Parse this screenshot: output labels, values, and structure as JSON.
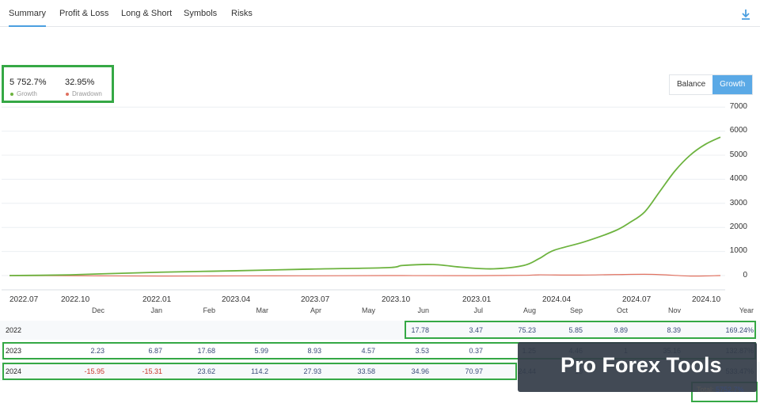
{
  "tabs": [
    {
      "label": "Summary",
      "active": true
    },
    {
      "label": "Profit & Loss"
    },
    {
      "label": "Long & Short"
    },
    {
      "label": "Symbols"
    },
    {
      "label": "Risks"
    }
  ],
  "download_icon": "download-icon",
  "stats": {
    "growth_value": "5 752.7%",
    "growth_label": "Growth",
    "drawdown_value": "32.95%",
    "drawdown_label": "Drawdown",
    "growth_color": "#6db33f",
    "drawdown_color": "#e0705f"
  },
  "toggle": {
    "balance_label": "Balance",
    "growth_label": "Growth",
    "active": "Growth"
  },
  "chart_data": {
    "type": "line",
    "x_tick_labels": [
      "2022.07",
      "2022.10",
      "2022.01",
      "2023.04",
      "2023.07",
      "2023.10",
      "2023.01",
      "2024.04",
      "2024.07",
      "2024.10"
    ],
    "y_tick_labels": [
      "7000",
      "6000",
      "5000",
      "4000",
      "3000",
      "2000",
      "1000",
      "0"
    ],
    "ylim": [
      -100,
      7000
    ],
    "y_axis_position": "right",
    "grid": true,
    "series": [
      {
        "color": "#6db33f",
        "x": [
          0,
          0.4,
          0.8,
          1.2,
          2,
          3,
          4,
          5,
          5.2,
          5.6,
          6,
          6.4,
          6.8,
          7,
          7.2,
          7.6,
          8,
          8.2,
          8.4,
          8.6,
          8.8,
          9,
          9.2,
          9.4
        ],
        "values": [
          0,
          10,
          30,
          70,
          140,
          200,
          270,
          330,
          420,
          460,
          340,
          280,
          420,
          700,
          1050,
          1400,
          1850,
          2200,
          2650,
          3500,
          4350,
          5000,
          5450,
          5750
        ]
      },
      {
        "color": "#e0705f",
        "x": [
          0,
          1,
          2,
          3,
          4,
          5,
          6,
          6.8,
          7,
          7.5,
          8,
          8.5,
          9,
          9.4
        ],
        "values": [
          0,
          -10,
          -20,
          -15,
          -10,
          0,
          -5,
          10,
          30,
          20,
          40,
          50,
          -20,
          0
        ]
      }
    ]
  },
  "table": {
    "headers": [
      "Dec",
      "Jan",
      "Feb",
      "Mar",
      "Apr",
      "May",
      "Jun",
      "Jul",
      "Aug",
      "Sep",
      "Oct",
      "Nov",
      "Year"
    ],
    "rows": [
      {
        "year": "2022",
        "cells": [
          "",
          "",
          "",
          "",
          "",
          "",
          "17.78",
          "3.47",
          "75.23",
          "5.85",
          "9.89",
          "8.39",
          "169.24%"
        ],
        "negative": []
      },
      {
        "year": "2023",
        "cells": [
          "2.23",
          "6.87",
          "17.68",
          "5.99",
          "8.93",
          "4.57",
          "3.53",
          "0.37",
          "1.25",
          "4.46",
          "1",
          "35.16",
          "132.87%"
        ],
        "negative": []
      },
      {
        "year": "2024",
        "cells": [
          "-15.95",
          "-15.31",
          "23.62",
          "114.2",
          "27.93",
          "33.58",
          "34.96",
          "70.97",
          "24.44",
          "10",
          "",
          "",
          "533.47%"
        ],
        "negative": [
          0,
          1
        ]
      }
    ],
    "total_label": "Total:",
    "total_value": "5752.7%"
  },
  "watermark": "Pro Forex Tools"
}
